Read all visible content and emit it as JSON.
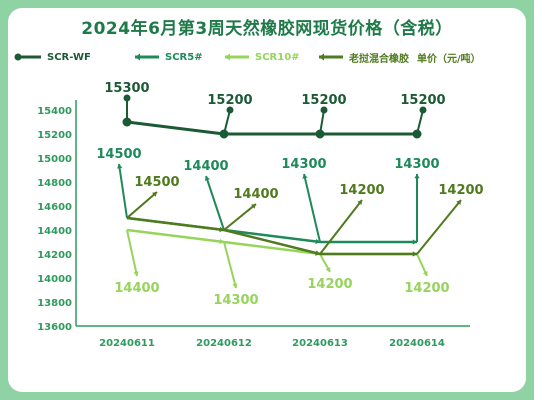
{
  "chart_data": {
    "type": "line",
    "title": "2024年6月第3周天然橡胶网现货价格（含税）",
    "categories": [
      "20240611",
      "20240612",
      "20240613",
      "20240614"
    ],
    "ylim": [
      13600,
      15500
    ],
    "yticks": [
      13600,
      13800,
      14000,
      14200,
      14400,
      14600,
      14800,
      15000,
      15200,
      15400
    ],
    "grid": false,
    "legend_position": "top",
    "legend_suffix": "单价（元/吨）",
    "series": [
      {
        "name": "SCR-WF",
        "color": "#1c5a36",
        "values": [
          15300,
          15200,
          15200,
          15200
        ],
        "labels": [
          "15300",
          "15200",
          "15200",
          "15200"
        ]
      },
      {
        "name": "SCR5#",
        "color": "#1e8a5a",
        "values": [
          14500,
          14400,
          14300,
          14300
        ],
        "labels": [
          "14500",
          "14400",
          "14300",
          "14300"
        ]
      },
      {
        "name": "SCR10#",
        "color": "#96d45c",
        "values": [
          14400,
          14300,
          14200,
          14200
        ],
        "labels": [
          "14400",
          "14300",
          "14200",
          "14200"
        ]
      },
      {
        "name": "老挝混合橡胶",
        "color": "#4f7a1e",
        "values": [
          14500,
          14400,
          14200,
          14200
        ],
        "labels": [
          "14500",
          "14400",
          "14200",
          "14200"
        ]
      }
    ]
  }
}
